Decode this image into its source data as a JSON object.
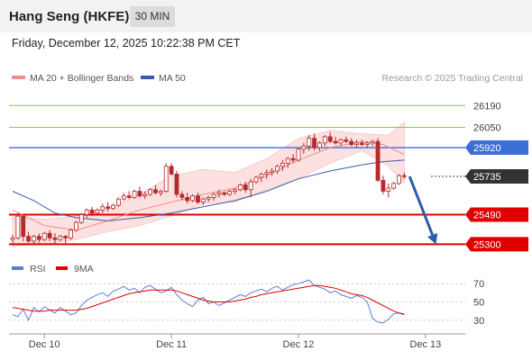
{
  "header": {
    "title": "Hang Seng (HKFE)",
    "timeframe": "30 MIN",
    "datetime": "Friday, December 12, 2025 10:22:38 PM CET"
  },
  "legend": {
    "ma20_label": "MA 20 + Bollinger Bands",
    "ma50_label": "MA 50",
    "credit": "Research © 2025 Trading Central",
    "rsi_label": "RSI",
    "rsi_ma_label": "9MA"
  },
  "colors": {
    "ma20": "#f08c8c",
    "ma50": "#3c5aa6",
    "bollinger_fill": "#fde0e0",
    "candle": "#b52a2a",
    "resistance": "#8cc63f",
    "pivot": "#3b6fd6",
    "support": "#e00000",
    "arrow": "#2b5ea8",
    "rsi": "#5b7fd6",
    "rsi_ma": "#e00000"
  },
  "chart_data": [
    {
      "type": "candlestick",
      "ylim": [
        25250,
        26290
      ],
      "levels": [
        {
          "value": 26190,
          "label": "26190",
          "kind": "resistance"
        },
        {
          "value": 26050,
          "label": "26050",
          "kind": "resistance"
        },
        {
          "value": 25920,
          "label": "25920",
          "kind": "pivot"
        },
        {
          "value": 25735,
          "label": "25735",
          "kind": "last"
        },
        {
          "value": 25490,
          "label": "25490",
          "kind": "support"
        },
        {
          "value": 25300,
          "label": "25300",
          "kind": "support"
        }
      ],
      "x_ticks": [
        {
          "index": 6,
          "label": "Dec 10"
        },
        {
          "index": 30,
          "label": "Dec 11"
        },
        {
          "index": 54,
          "label": "Dec 12"
        },
        {
          "index": 78,
          "label": "Dec 13"
        }
      ],
      "candles": [
        [
          25330,
          25360,
          25300,
          25340
        ],
        [
          25340,
          25500,
          25330,
          25480
        ],
        [
          25480,
          25490,
          25320,
          25350
        ],
        [
          25350,
          25380,
          25310,
          25320
        ],
        [
          25320,
          25360,
          25300,
          25350
        ],
        [
          25350,
          25370,
          25310,
          25330
        ],
        [
          25330,
          25380,
          25320,
          25370
        ],
        [
          25370,
          25390,
          25320,
          25340
        ],
        [
          25340,
          25370,
          25300,
          25330
        ],
        [
          25330,
          25360,
          25320,
          25350
        ],
        [
          25350,
          25360,
          25300,
          25340
        ],
        [
          25340,
          25400,
          25330,
          25390
        ],
        [
          25390,
          25450,
          25380,
          25440
        ],
        [
          25440,
          25500,
          25430,
          25490
        ],
        [
          25490,
          25530,
          25470,
          25520
        ],
        [
          25520,
          25540,
          25480,
          25500
        ],
        [
          25500,
          25530,
          25490,
          25520
        ],
        [
          25520,
          25560,
          25500,
          25540
        ],
        [
          25540,
          25570,
          25510,
          25530
        ],
        [
          25530,
          25560,
          25520,
          25550
        ],
        [
          25550,
          25600,
          25540,
          25590
        ],
        [
          25590,
          25630,
          25580,
          25610
        ],
        [
          25610,
          25640,
          25590,
          25600
        ],
        [
          25600,
          25650,
          25590,
          25640
        ],
        [
          25640,
          25670,
          25600,
          25610
        ],
        [
          25610,
          25640,
          25590,
          25620
        ],
        [
          25620,
          25660,
          25610,
          25650
        ],
        [
          25650,
          25680,
          25620,
          25630
        ],
        [
          25630,
          25650,
          25610,
          25640
        ],
        [
          25640,
          25820,
          25630,
          25800
        ],
        [
          25800,
          25820,
          25740,
          25750
        ],
        [
          25750,
          25770,
          25600,
          25620
        ],
        [
          25620,
          25640,
          25580,
          25600
        ],
        [
          25600,
          25630,
          25560,
          25580
        ],
        [
          25580,
          25620,
          25570,
          25610
        ],
        [
          25610,
          25630,
          25560,
          25570
        ],
        [
          25570,
          25600,
          25550,
          25590
        ],
        [
          25590,
          25610,
          25570,
          25600
        ],
        [
          25600,
          25630,
          25580,
          25620
        ],
        [
          25620,
          25650,
          25600,
          25630
        ],
        [
          25630,
          25640,
          25610,
          25620
        ],
        [
          25620,
          25650,
          25610,
          25640
        ],
        [
          25640,
          25660,
          25620,
          25650
        ],
        [
          25650,
          25690,
          25640,
          25680
        ],
        [
          25680,
          25700,
          25630,
          25650
        ],
        [
          25650,
          25720,
          25600,
          25700
        ],
        [
          25700,
          25740,
          25690,
          25730
        ],
        [
          25730,
          25760,
          25700,
          25750
        ],
        [
          25750,
          25780,
          25720,
          25760
        ],
        [
          25760,
          25790,
          25740,
          25770
        ],
        [
          25770,
          25810,
          25750,
          25800
        ],
        [
          25800,
          25840,
          25770,
          25820
        ],
        [
          25820,
          25860,
          25790,
          25850
        ],
        [
          25850,
          25880,
          25820,
          25840
        ],
        [
          25840,
          25920,
          25830,
          25910
        ],
        [
          25910,
          25950,
          25880,
          25930
        ],
        [
          25930,
          26000,
          25900,
          25980
        ],
        [
          25980,
          26010,
          25900,
          25920
        ],
        [
          25920,
          25960,
          25900,
          25950
        ],
        [
          25950,
          26000,
          25930,
          25990
        ],
        [
          25990,
          26020,
          25950,
          25960
        ],
        [
          25960,
          25990,
          25940,
          25950
        ],
        [
          25950,
          25980,
          25930,
          25970
        ],
        [
          25970,
          25990,
          25950,
          25960
        ],
        [
          25960,
          25980,
          25930,
          25940
        ],
        [
          25940,
          25970,
          25920,
          25950
        ],
        [
          25950,
          25970,
          25930,
          25940
        ],
        [
          25940,
          25960,
          25920,
          25950
        ],
        [
          25950,
          25970,
          25930,
          25960
        ],
        [
          25960,
          25980,
          25700,
          25710
        ],
        [
          25710,
          25740,
          25620,
          25640
        ],
        [
          25640,
          25690,
          25600,
          25660
        ],
        [
          25660,
          25700,
          25650,
          25690
        ],
        [
          25690,
          25750,
          25680,
          25740
        ],
        [
          25740,
          25760,
          25720,
          25735
        ]
      ],
      "ma20": [
        [
          0,
          25520
        ],
        [
          6,
          25420
        ],
        [
          12,
          25390
        ],
        [
          18,
          25450
        ],
        [
          24,
          25520
        ],
        [
          30,
          25570
        ],
        [
          36,
          25620
        ],
        [
          42,
          25660
        ],
        [
          48,
          25740
        ],
        [
          54,
          25840
        ],
        [
          60,
          25920
        ],
        [
          66,
          25960
        ],
        [
          70,
          25940
        ],
        [
          74,
          25875
        ]
      ],
      "bollinger_upper": [
        [
          0,
          25480
        ],
        [
          6,
          25460
        ],
        [
          12,
          25480
        ],
        [
          18,
          25530
        ],
        [
          24,
          25620
        ],
        [
          30,
          25740
        ],
        [
          36,
          25780
        ],
        [
          42,
          25760
        ],
        [
          48,
          25850
        ],
        [
          54,
          25980
        ],
        [
          60,
          26030
        ],
        [
          66,
          26010
        ],
        [
          71,
          26000
        ],
        [
          74,
          26085
        ]
      ],
      "bollinger_lower": [
        [
          0,
          25290
        ],
        [
          6,
          25300
        ],
        [
          12,
          25330
        ],
        [
          18,
          25380
        ],
        [
          24,
          25420
        ],
        [
          30,
          25480
        ],
        [
          36,
          25560
        ],
        [
          42,
          25570
        ],
        [
          48,
          25650
        ],
        [
          54,
          25720
        ],
        [
          60,
          25820
        ],
        [
          66,
          25900
        ],
        [
          71,
          25800
        ],
        [
          74,
          25690
        ]
      ],
      "ma50": [
        [
          0,
          25640
        ],
        [
          4,
          25580
        ],
        [
          8,
          25500
        ],
        [
          12,
          25470
        ],
        [
          18,
          25450
        ],
        [
          24,
          25470
        ],
        [
          30,
          25500
        ],
        [
          36,
          25540
        ],
        [
          42,
          25580
        ],
        [
          48,
          25640
        ],
        [
          54,
          25720
        ],
        [
          60,
          25770
        ],
        [
          66,
          25810
        ],
        [
          70,
          25830
        ],
        [
          74,
          25840
        ]
      ],
      "forecast_arrow": {
        "from": [
          75,
          25735
        ],
        "to": [
          80,
          25300
        ]
      }
    },
    {
      "type": "line",
      "ylim": [
        20,
        80
      ],
      "y_ticks": [
        70,
        50,
        30
      ],
      "series": [
        {
          "name": "RSI",
          "values": [
            36,
            34,
            42,
            30,
            44,
            39,
            45,
            41,
            38,
            44,
            40,
            36,
            38,
            46,
            52,
            55,
            58,
            60,
            56,
            62,
            64,
            67,
            63,
            65,
            60,
            66,
            68,
            64,
            60,
            62,
            66,
            58,
            52,
            48,
            45,
            52,
            55,
            48,
            50,
            46,
            49,
            52,
            55,
            58,
            56,
            60,
            62,
            64,
            61,
            65,
            67,
            63,
            66,
            69,
            70,
            72,
            74,
            68,
            66,
            64,
            60,
            62,
            58,
            56,
            54,
            57,
            55,
            50,
            32,
            28,
            27,
            31,
            37,
            38,
            37
          ]
        },
        {
          "name": "9MA",
          "values": [
            44,
            43,
            42,
            41,
            40,
            40,
            40,
            41,
            41,
            41,
            41,
            41,
            41,
            42,
            43,
            45,
            47,
            49,
            51,
            53,
            55,
            57,
            59,
            60,
            61,
            62,
            63,
            63,
            63,
            63,
            63,
            62,
            60,
            58,
            56,
            54,
            52,
            51,
            50,
            50,
            50,
            50,
            51,
            52,
            53,
            55,
            56,
            58,
            59,
            60,
            61,
            62,
            63,
            64,
            65,
            66,
            67,
            68,
            68,
            67,
            66,
            65,
            63,
            61,
            59,
            58,
            57,
            55,
            52,
            49,
            46,
            43,
            40,
            38,
            36
          ]
        }
      ]
    }
  ]
}
